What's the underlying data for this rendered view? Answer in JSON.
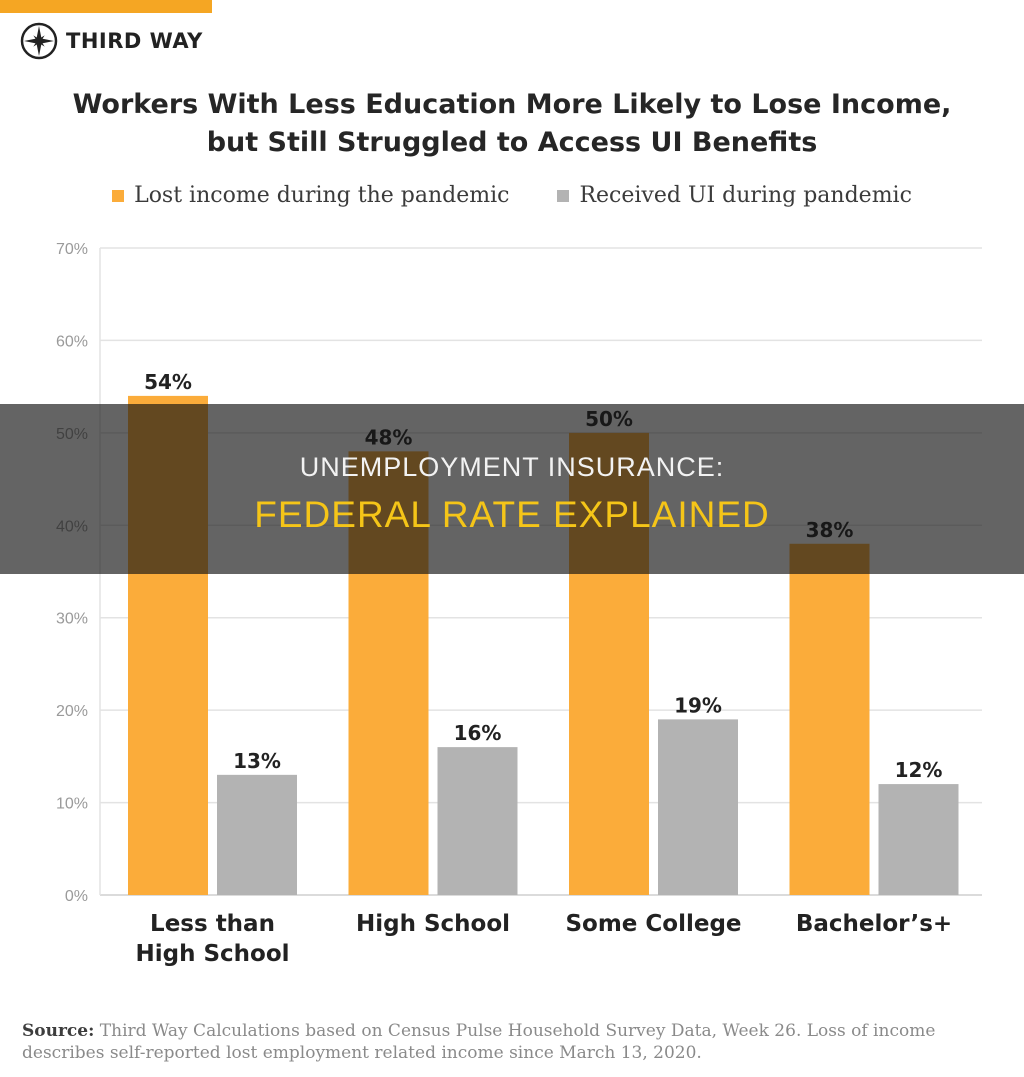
{
  "brand": {
    "name": "THIRD WAY",
    "logo_icon": "compass-star-icon",
    "accent": "#f5a623"
  },
  "title_lines": [
    "Workers With Less Education More Likely to Lose Income,",
    "but Still Struggled to Access UI Benefits"
  ],
  "overlay": {
    "line1": "UNEMPLOYMENT INSURANCE:",
    "line2": "FEDERAL RATE EXPLAINED"
  },
  "source": {
    "label": "Source:",
    "text": "Third Way Calculations based on Census Pulse Household Survey Data, Week 26. Loss of income describes self-reported lost employment related income since March 13, 2020."
  },
  "chart_data": {
    "type": "bar",
    "categories": [
      [
        "Less than",
        "High School"
      ],
      [
        "High School"
      ],
      [
        "Some College"
      ],
      [
        "Bachelor’s+"
      ]
    ],
    "series": [
      {
        "name": "Lost income during the pandemic",
        "color": "#fbac3a",
        "values": [
          54,
          48,
          50,
          38
        ],
        "labels": [
          "54%",
          "48%",
          "50%",
          "38%"
        ]
      },
      {
        "name": "Received UI during pandemic",
        "color": "#b3b3b3",
        "values": [
          13,
          16,
          19,
          12
        ],
        "labels": [
          "13%",
          "16%",
          "19%",
          "12%"
        ]
      }
    ],
    "ylim": [
      0,
      70
    ],
    "yticks": [
      "0%",
      "10%",
      "20%",
      "30%",
      "40%",
      "50%",
      "60%",
      "70%"
    ],
    "grid": true,
    "legend": "top"
  }
}
